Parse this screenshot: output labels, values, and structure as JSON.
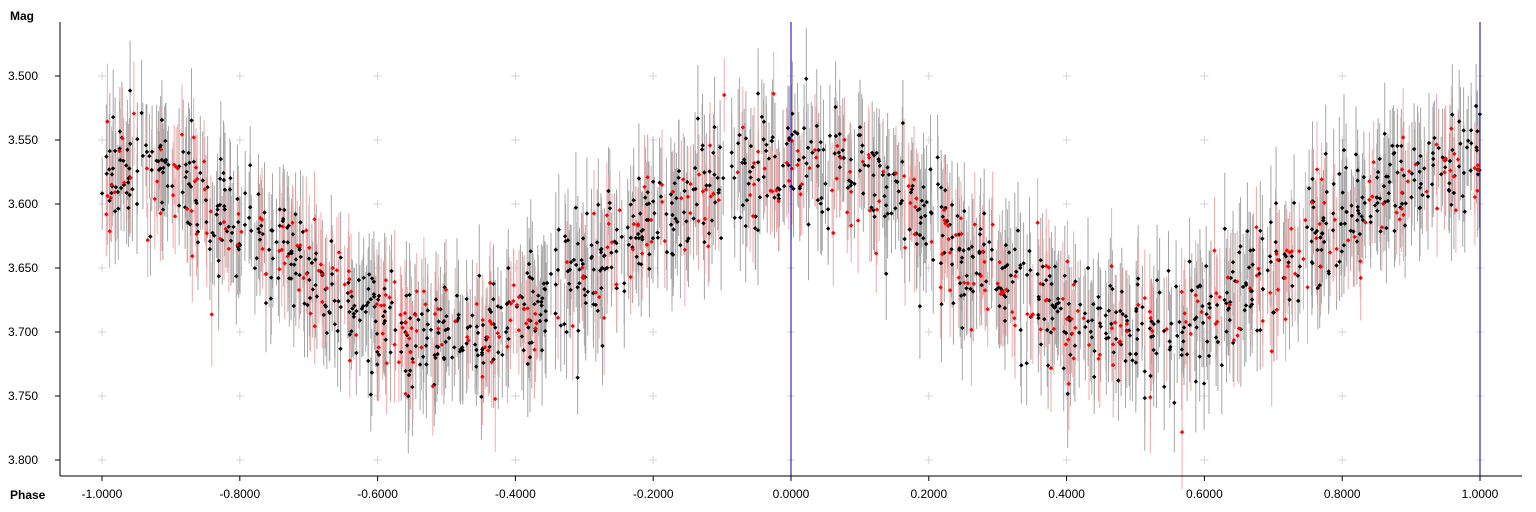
{
  "chart_data": {
    "type": "scatter",
    "title": "",
    "xlabel": "Phase",
    "ylabel": "Mag",
    "xlim": [
      -1.0,
      1.0
    ],
    "ylim": [
      3.46,
      3.81
    ],
    "y_inverted": false,
    "grid": "plus-markers",
    "x_ticks": [
      -1.0,
      -0.8,
      -0.6,
      -0.4,
      -0.2,
      0.0,
      0.2,
      0.4,
      0.6,
      0.8,
      1.0
    ],
    "x_tick_labels": [
      "-1.0000",
      "-0.8000",
      "-0.6000",
      "-0.4000",
      "-0.2000",
      "0.0000",
      "0.2000",
      "0.4000",
      "0.6000",
      "0.8000",
      "1.0000"
    ],
    "y_ticks": [
      3.5,
      3.55,
      3.6,
      3.65,
      3.7,
      3.75,
      3.8
    ],
    "y_tick_labels": [
      "3.500",
      "3.550",
      "3.600",
      "3.650",
      "3.700",
      "3.750",
      "3.800"
    ],
    "vertical_markers": [
      0.0,
      1.0
    ],
    "model": {
      "mean": 3.63,
      "amplitude": 0.065,
      "cycles_per_phase": 1.5,
      "phase_offset": -0.05,
      "scatter": 0.022,
      "error_bar": 0.035
    },
    "series": [
      {
        "points": 1150,
        "color": "#000000",
        "error_color": "#a6a6a6"
      },
      {
        "points": 420,
        "color": "#ff0000",
        "error_color": "#f2aaaa"
      }
    ]
  },
  "colors": {
    "marker_line": "#0000bb",
    "grid_marker": "#d6d6d6",
    "axis": "#000000"
  }
}
